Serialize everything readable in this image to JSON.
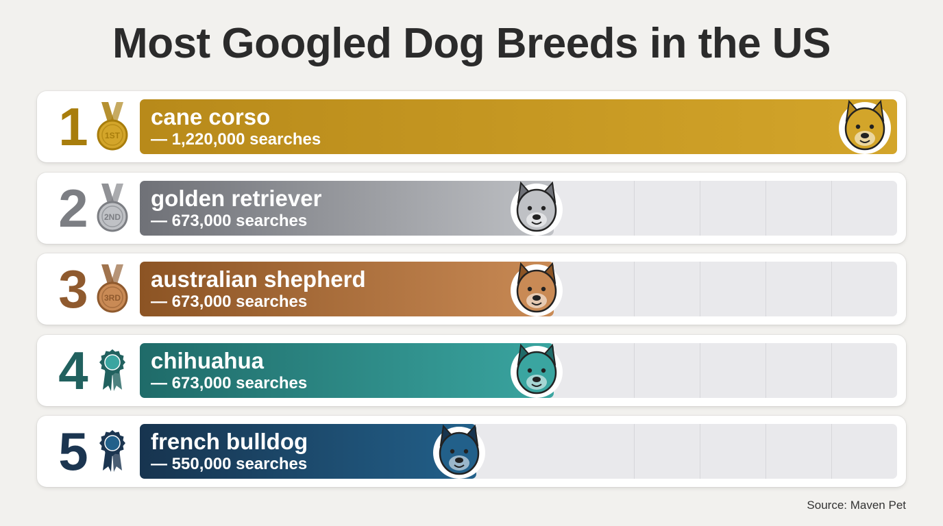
{
  "header": {
    "title": "Most Googled Dog Breeds in the US"
  },
  "footer": {
    "source": "Source: Maven Pet"
  },
  "chart_data": {
    "type": "bar",
    "orientation": "horizontal",
    "title": "Most Googled Dog Breeds in the US",
    "xlim": [
      0,
      1220000
    ],
    "grid": true,
    "categories": [
      "cane corso",
      "golden retriever",
      "australian shepherd",
      "chihuahua",
      "french bulldog"
    ],
    "values": [
      1220000,
      673000,
      673000,
      673000,
      550000
    ],
    "rows": [
      {
        "rank": "1",
        "medal_label": "1ST",
        "medal": "gold-medal-icon",
        "breed": "cane corso",
        "searches_label": "— 1,220,000 searches",
        "value": 1220000,
        "color": "#b88a1a",
        "color_light": "#d3a52a",
        "rank_color": "#a87d0c",
        "dog_icon": "cane-corso-icon"
      },
      {
        "rank": "2",
        "medal_label": "2ND",
        "medal": "silver-medal-icon",
        "breed": "golden retriever",
        "searches_label": "— 673,000 searches",
        "value": 673000,
        "color": "#6f7177",
        "color_light": "#bfc1c5",
        "rank_color": "#7c7e83",
        "dog_icon": "golden-retriever-icon"
      },
      {
        "rank": "3",
        "medal_label": "3RD",
        "medal": "bronze-medal-icon",
        "breed": "australian shepherd",
        "searches_label": "— 673,000 searches",
        "value": 673000,
        "color": "#8c5424",
        "color_light": "#c98a55",
        "rank_color": "#8f5a2e",
        "dog_icon": "australian-shepherd-icon"
      },
      {
        "rank": "4",
        "medal_label": "",
        "medal": "teal-ribbon-icon",
        "breed": "chihuahua",
        "searches_label": "— 673,000 searches",
        "value": 673000,
        "color": "#1f6b69",
        "color_light": "#3aa5a0",
        "rank_color": "#21615f",
        "dog_icon": "chihuahua-icon"
      },
      {
        "rank": "5",
        "medal_label": "",
        "medal": "blue-ribbon-icon",
        "breed": "french bulldog",
        "searches_label": "— 550,000 searches",
        "value": 550000,
        "color": "#17344f",
        "color_light": "#22608a",
        "rank_color": "#1b3550",
        "dog_icon": "french-bulldog-icon"
      }
    ]
  }
}
